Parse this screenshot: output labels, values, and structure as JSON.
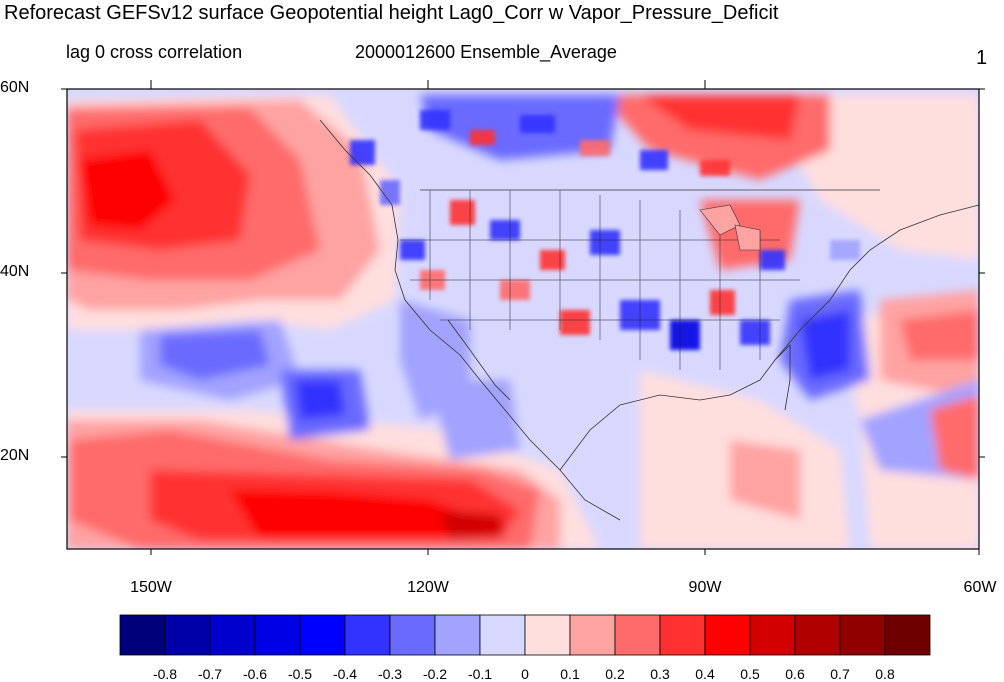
{
  "title": "Reforecast GEFSv12 surface Geopotential height Lag0_Corr w Vapor_Pressure_Deficit",
  "left_string": "lag 0 cross correlation",
  "center_string": "2000012600 Ensemble_Average",
  "right_string": "1",
  "map": {
    "lat_ticks": [
      "60N",
      "40N",
      "20N"
    ],
    "lon_ticks": [
      "150W",
      "120W",
      "90W",
      "60W"
    ],
    "field": "lag 0 cross correlation",
    "features": [
      "coastlines",
      "us-state-boundaries",
      "national-boundaries",
      "great-lakes"
    ]
  },
  "colorbar": {
    "labels": [
      "-0.8",
      "-0.7",
      "-0.6",
      "-0.5",
      "-0.4",
      "-0.3",
      "-0.2",
      "-0.1",
      "0",
      "0.1",
      "0.2",
      "0.3",
      "0.4",
      "0.5",
      "0.6",
      "0.7",
      "0.8"
    ],
    "colors": [
      "#00007a",
      "#0000a8",
      "#0000cc",
      "#0000e6",
      "#0000ff",
      "#3333ff",
      "#6a6aff",
      "#a2a2ff",
      "#d8d8ff",
      "#ffdede",
      "#ffa2a2",
      "#ff6a6a",
      "#ff3030",
      "#ff0000",
      "#d20000",
      "#b00000",
      "#900000",
      "#6e0000"
    ]
  }
}
